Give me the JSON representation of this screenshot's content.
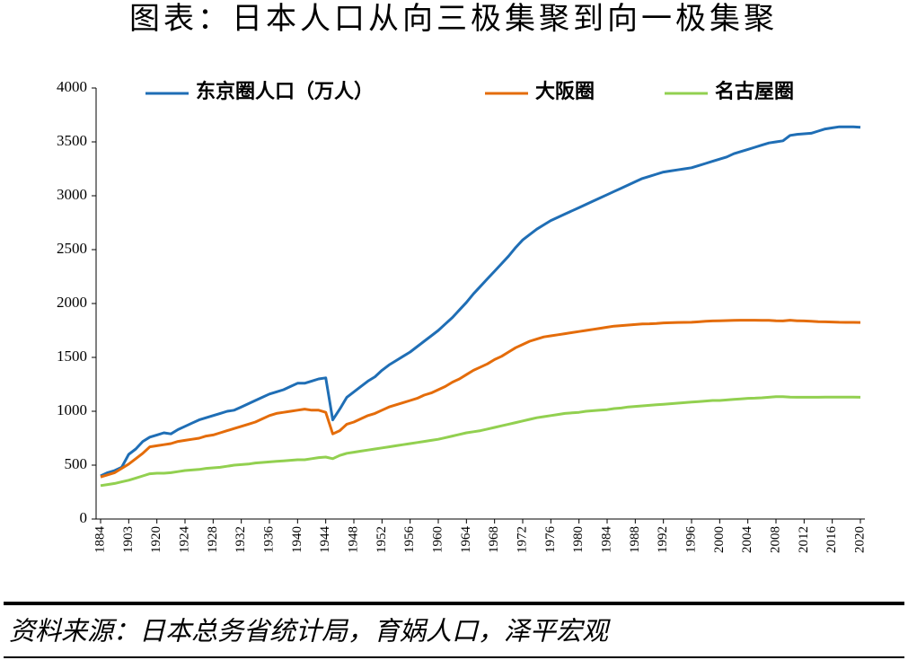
{
  "chart_data": {
    "type": "line",
    "title": "图表：日本人口从向三极集聚到向一极集聚",
    "source": "资料来源：日本总务省统计局，育娲人口，泽平宏观",
    "categories": [
      "1884",
      null,
      null,
      null,
      "1903",
      null,
      null,
      null,
      "1920",
      null,
      null,
      null,
      "1924",
      null,
      null,
      null,
      "1928",
      null,
      null,
      null,
      "1932",
      null,
      null,
      null,
      "1936",
      null,
      null,
      null,
      "1940",
      null,
      null,
      null,
      "1944",
      null,
      null,
      null,
      "1948",
      null,
      null,
      null,
      "1952",
      null,
      null,
      null,
      "1956",
      null,
      null,
      null,
      "1960",
      null,
      null,
      null,
      "1964",
      null,
      null,
      null,
      "1968",
      null,
      null,
      null,
      "1972",
      null,
      null,
      null,
      "1976",
      null,
      null,
      null,
      "1980",
      null,
      null,
      null,
      "1984",
      null,
      null,
      null,
      "1988",
      null,
      null,
      null,
      "1992",
      null,
      null,
      null,
      "1996",
      null,
      null,
      null,
      "2000",
      null,
      null,
      null,
      "2004",
      null,
      null,
      null,
      "2008",
      null,
      null,
      null,
      "2012",
      null,
      null,
      null,
      "2016",
      null,
      null,
      null,
      "2020"
    ],
    "series": [
      {
        "name": "东京圈人口（万人）",
        "color": "#1f6eb5",
        "values": [
          400,
          430,
          450,
          480,
          600,
          650,
          720,
          760,
          780,
          800,
          790,
          830,
          860,
          890,
          920,
          940,
          960,
          980,
          1000,
          1010,
          1040,
          1070,
          1100,
          1130,
          1160,
          1180,
          1200,
          1230,
          1260,
          1260,
          1280,
          1300,
          1310,
          920,
          1020,
          1130,
          1180,
          1230,
          1280,
          1320,
          1380,
          1430,
          1470,
          1510,
          1550,
          1600,
          1650,
          1700,
          1750,
          1810,
          1870,
          1940,
          2010,
          2090,
          2160,
          2230,
          2300,
          2370,
          2440,
          2520,
          2590,
          2640,
          2690,
          2730,
          2770,
          2800,
          2830,
          2860,
          2890,
          2920,
          2950,
          2980,
          3010,
          3040,
          3070,
          3100,
          3130,
          3160,
          3180,
          3200,
          3220,
          3230,
          3240,
          3250,
          3260,
          3280,
          3300,
          3320,
          3340,
          3360,
          3390,
          3410,
          3430,
          3450,
          3470,
          3490,
          3500,
          3510,
          3560,
          3570,
          3575,
          3580,
          3600,
          3620,
          3630,
          3640,
          3640,
          3640,
          3635
        ]
      },
      {
        "name": "大阪圈",
        "color": "#e46c0a",
        "values": [
          390,
          410,
          430,
          470,
          510,
          560,
          610,
          670,
          680,
          690,
          700,
          720,
          730,
          740,
          750,
          770,
          780,
          800,
          820,
          840,
          860,
          880,
          900,
          930,
          960,
          980,
          990,
          1000,
          1010,
          1020,
          1010,
          1010,
          990,
          790,
          820,
          880,
          900,
          930,
          960,
          980,
          1010,
          1040,
          1060,
          1080,
          1100,
          1120,
          1150,
          1170,
          1200,
          1230,
          1270,
          1300,
          1340,
          1380,
          1410,
          1440,
          1480,
          1510,
          1550,
          1590,
          1620,
          1650,
          1670,
          1690,
          1700,
          1710,
          1720,
          1730,
          1740,
          1750,
          1760,
          1770,
          1780,
          1790,
          1795,
          1800,
          1805,
          1810,
          1812,
          1815,
          1820,
          1822,
          1824,
          1825,
          1826,
          1830,
          1835,
          1838,
          1840,
          1842,
          1843,
          1845,
          1845,
          1845,
          1844,
          1843,
          1840,
          1838,
          1845,
          1840,
          1838,
          1835,
          1832,
          1830,
          1828,
          1826,
          1825,
          1825,
          1824
        ]
      },
      {
        "name": "名古屋圈",
        "color": "#92d050",
        "values": [
          310,
          320,
          330,
          345,
          360,
          380,
          400,
          420,
          425,
          425,
          430,
          440,
          450,
          455,
          460,
          470,
          475,
          480,
          490,
          500,
          505,
          510,
          520,
          525,
          530,
          535,
          540,
          545,
          550,
          550,
          560,
          570,
          575,
          560,
          590,
          610,
          620,
          630,
          640,
          650,
          660,
          670,
          680,
          690,
          700,
          710,
          720,
          730,
          740,
          755,
          770,
          785,
          800,
          810,
          820,
          835,
          850,
          865,
          880,
          895,
          910,
          925,
          940,
          950,
          960,
          970,
          980,
          985,
          990,
          1000,
          1005,
          1010,
          1015,
          1025,
          1030,
          1040,
          1045,
          1050,
          1055,
          1060,
          1065,
          1070,
          1075,
          1080,
          1085,
          1090,
          1095,
          1100,
          1100,
          1105,
          1110,
          1115,
          1120,
          1122,
          1125,
          1130,
          1135,
          1135,
          1132,
          1130,
          1130,
          1130,
          1130,
          1132,
          1132,
          1132,
          1132,
          1132,
          1130
        ]
      }
    ],
    "ylim": [
      0,
      4000
    ],
    "yticks": [
      0,
      500,
      1000,
      1500,
      2000,
      2500,
      3000,
      3500,
      4000
    ],
    "grid": false,
    "legend": "top"
  }
}
